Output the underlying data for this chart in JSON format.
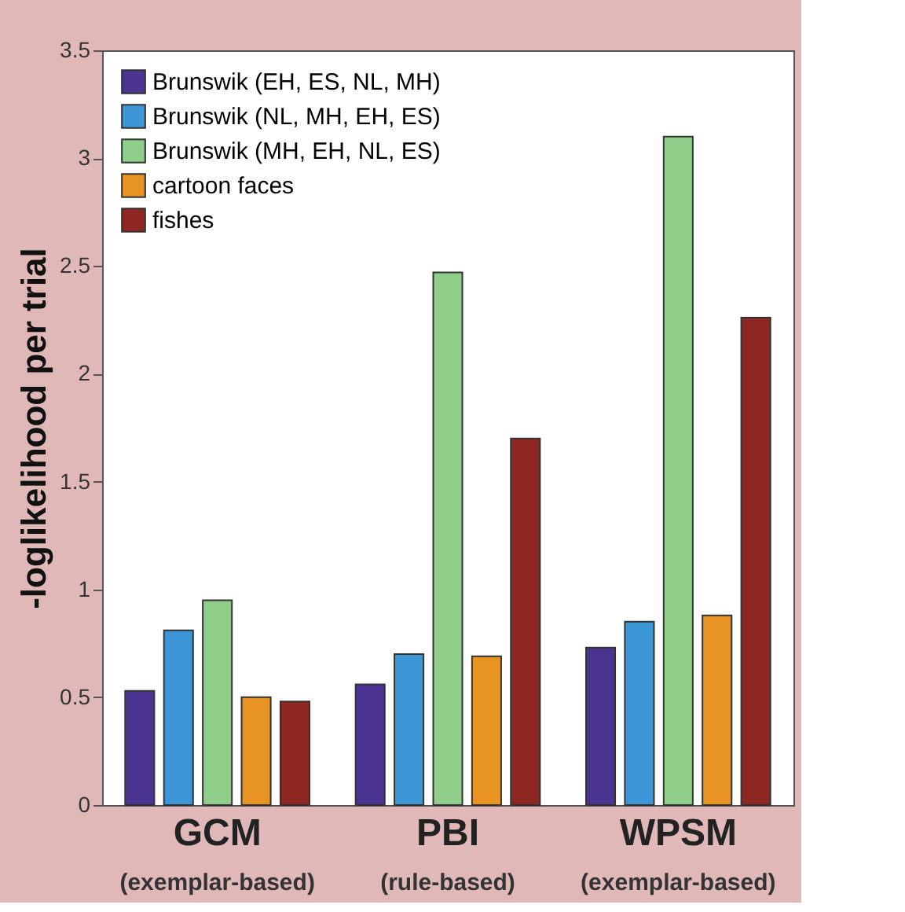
{
  "chart_data": {
    "type": "bar",
    "ylabel": "-loglikelihood per trial",
    "categories": [
      "GCM",
      "PBI",
      "WPSM"
    ],
    "series": [
      {
        "name": "Brunswik (EH, ES, NL, MH)",
        "color": "#4a3391",
        "values": [
          0.53,
          0.56,
          0.73
        ]
      },
      {
        "name": "Brunswik (NL, MH, EH, ES)",
        "color": "#3d97d6",
        "values": [
          0.81,
          0.7,
          0.85
        ]
      },
      {
        "name": "Brunswik (MH, EH, NL, ES)",
        "color": "#8fce88",
        "values": [
          0.95,
          2.47,
          3.1
        ]
      },
      {
        "name": "cartoon faces",
        "color": "#e89424",
        "values": [
          0.5,
          0.69,
          0.88
        ]
      },
      {
        "name": "fishes",
        "color": "#8e2622",
        "values": [
          0.48,
          1.7,
          2.26
        ]
      }
    ],
    "annotations": [
      "(exemplar-based)",
      "(rule-based)",
      "(exemplar-based)"
    ],
    "ylim": [
      0,
      3.5
    ],
    "yticks": [
      0,
      0.5,
      1,
      1.5,
      2,
      2.5,
      3,
      3.5
    ],
    "legend": "top left",
    "grid": false
  }
}
